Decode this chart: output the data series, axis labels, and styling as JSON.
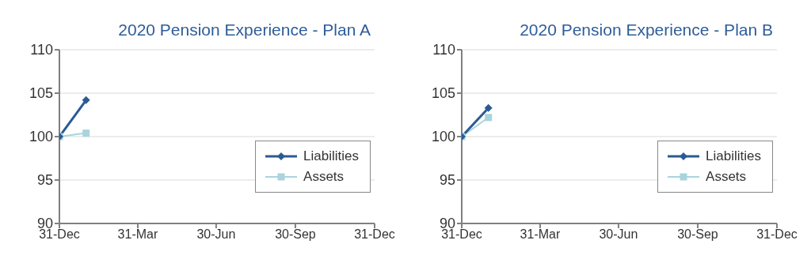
{
  "chart_data": [
    {
      "type": "line",
      "title": "2020 Pension Experience - Plan A",
      "x": [
        "2019-12-31",
        "2020-01-31"
      ],
      "series": [
        {
          "name": "Liabilities",
          "color": "#2b5b93",
          "marker": "diamond",
          "values": [
            100,
            104.2
          ]
        },
        {
          "name": "Assets",
          "color": "#a9d4dc",
          "marker": "square",
          "values": [
            100,
            100.4
          ]
        }
      ],
      "xlim": [
        "2019-12-31",
        "2020-12-31"
      ],
      "xticks": [
        {
          "value": "2019-12-31",
          "label": "31-Dec"
        },
        {
          "value": "2020-03-31",
          "label": "31-Mar"
        },
        {
          "value": "2020-06-30",
          "label": "30-Jun"
        },
        {
          "value": "2020-09-30",
          "label": "30-Sep"
        },
        {
          "value": "2020-12-31",
          "label": "31-Dec"
        }
      ],
      "ylim": [
        90,
        110
      ],
      "yticks": [
        90,
        95,
        100,
        105,
        110
      ],
      "grid": "y",
      "legend": "bottom right"
    },
    {
      "type": "line",
      "title": "2020 Pension Experience - Plan B",
      "x": [
        "2019-12-31",
        "2020-01-31"
      ],
      "series": [
        {
          "name": "Liabilities",
          "color": "#2b5b93",
          "marker": "diamond",
          "values": [
            100,
            103.3
          ]
        },
        {
          "name": "Assets",
          "color": "#a9d4dc",
          "marker": "square",
          "values": [
            100,
            102.2
          ]
        }
      ],
      "xlim": [
        "2019-12-31",
        "2020-12-31"
      ],
      "xticks": [
        {
          "value": "2019-12-31",
          "label": "31-Dec"
        },
        {
          "value": "2020-03-31",
          "label": "31-Mar"
        },
        {
          "value": "2020-06-30",
          "label": "30-Jun"
        },
        {
          "value": "2020-09-30",
          "label": "30-Sep"
        },
        {
          "value": "2020-12-31",
          "label": "31-Dec"
        }
      ],
      "ylim": [
        90,
        110
      ],
      "yticks": [
        90,
        95,
        100,
        105,
        110
      ],
      "grid": "y",
      "legend": "bottom right"
    }
  ]
}
